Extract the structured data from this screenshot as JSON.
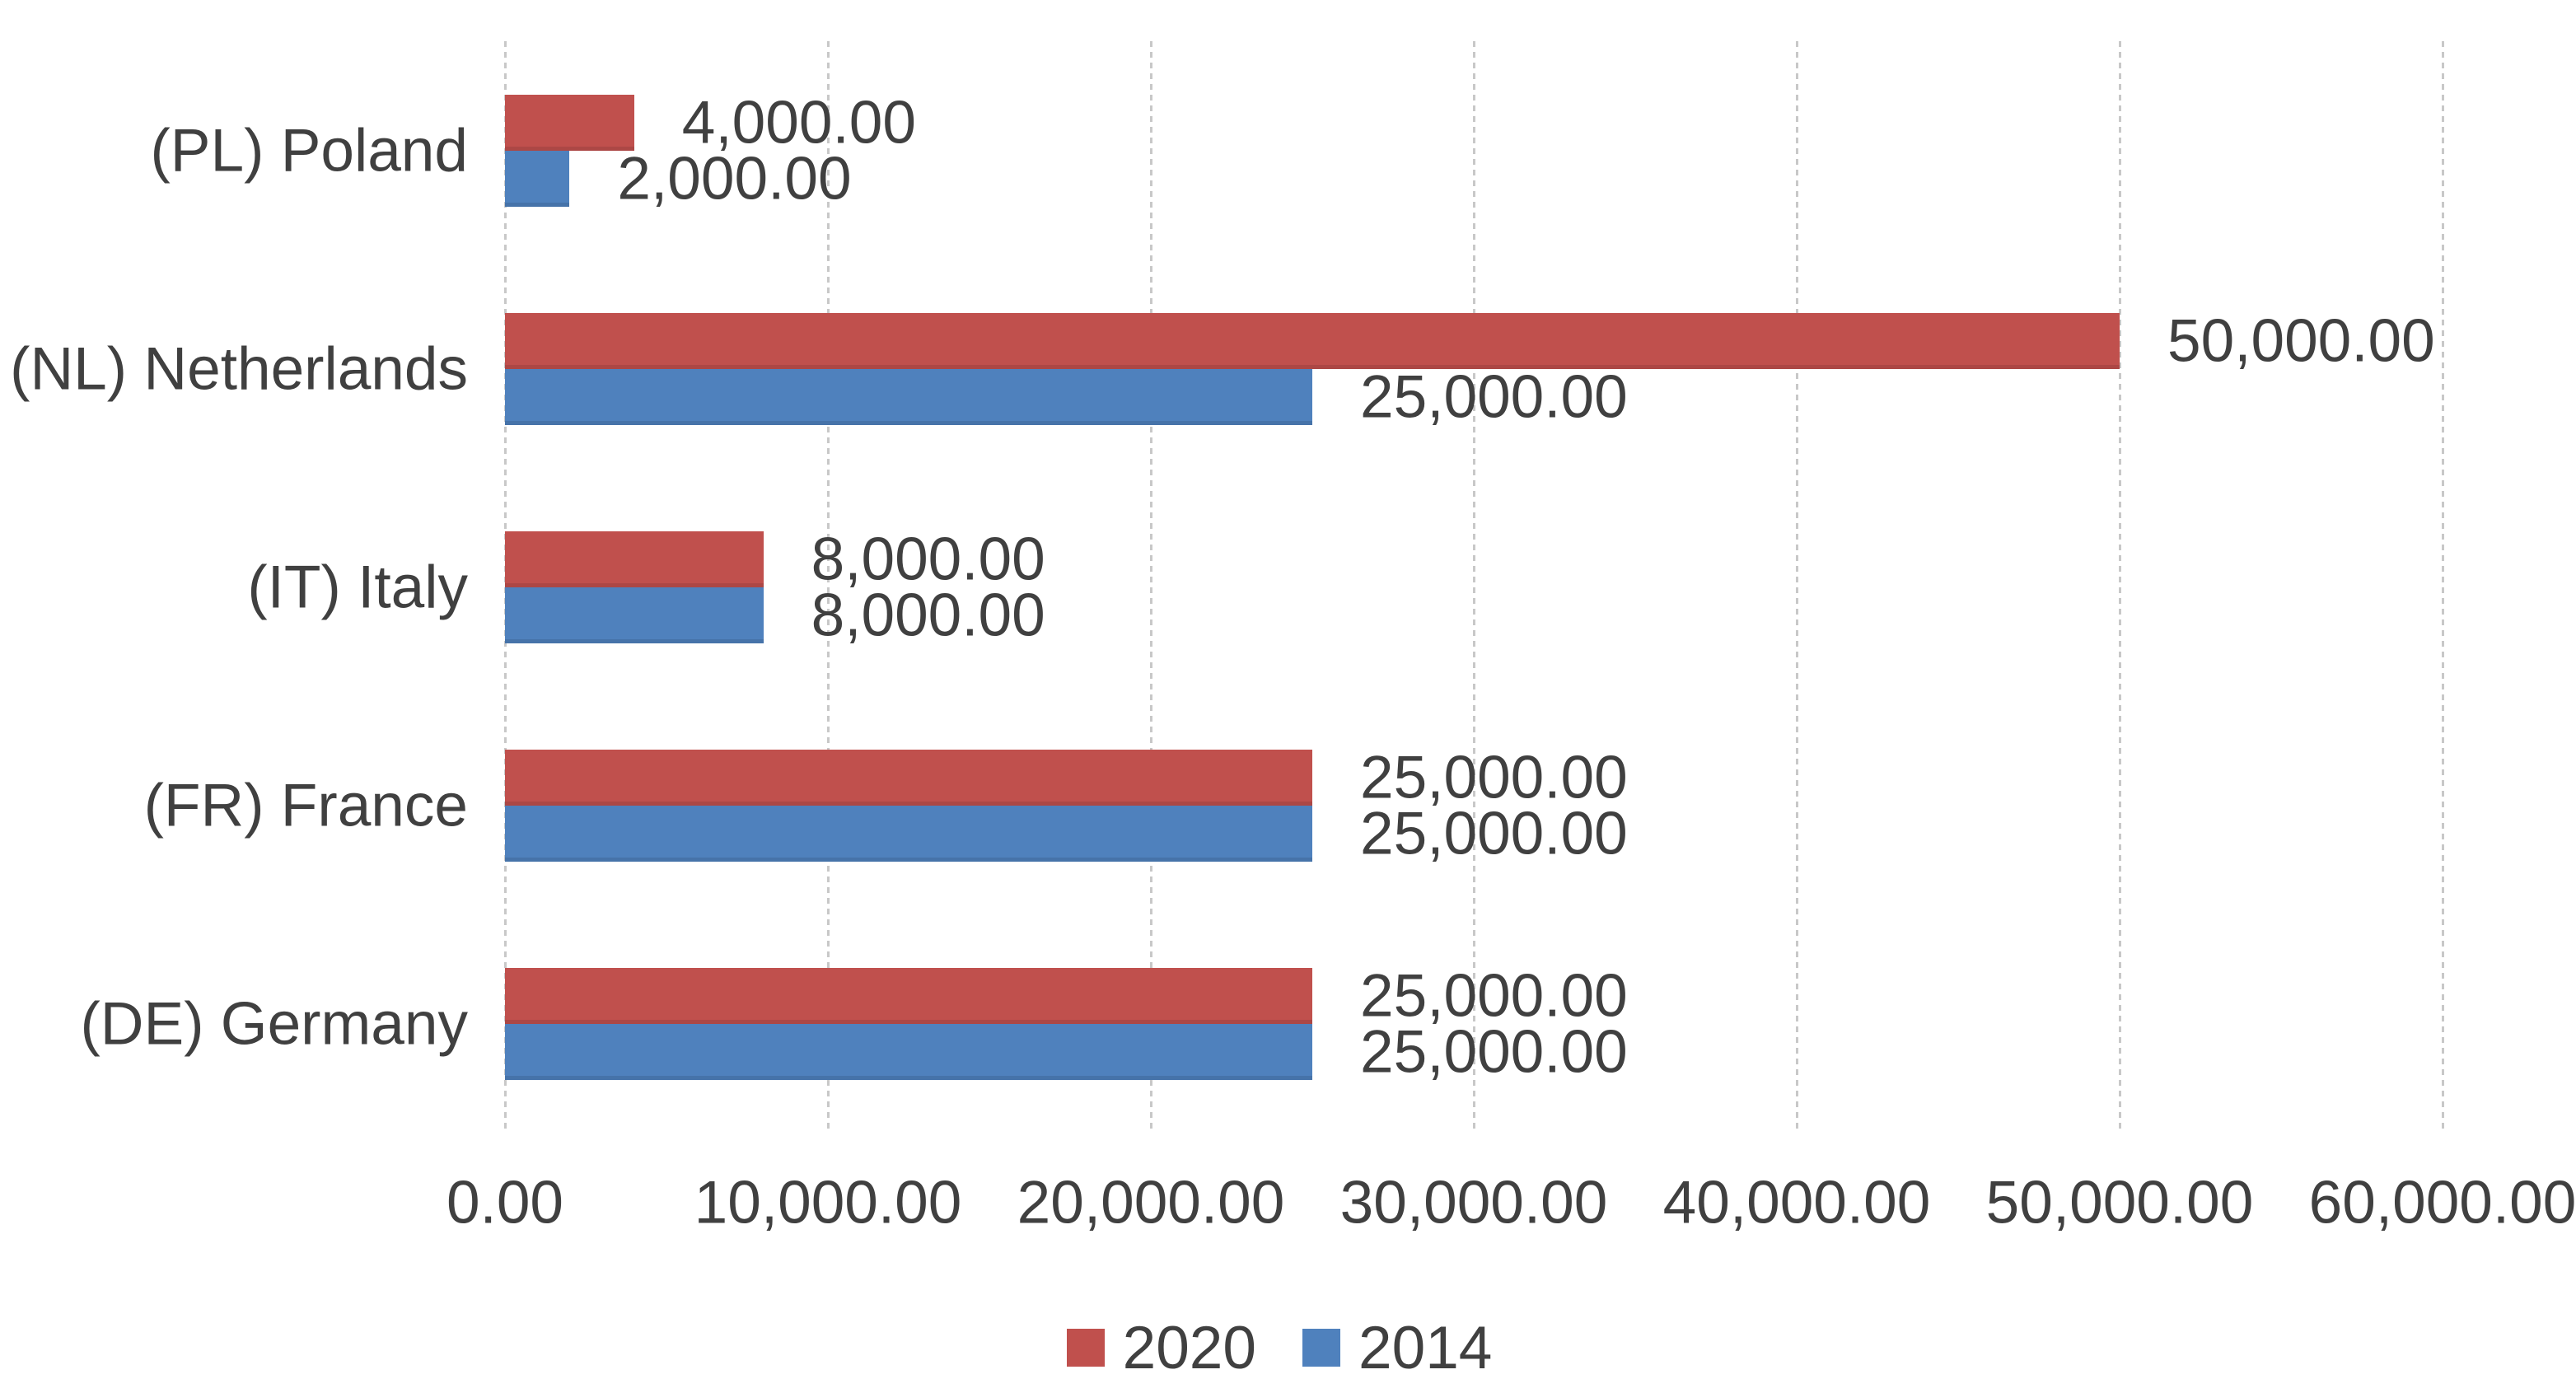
{
  "chart_data": {
    "type": "bar",
    "orientation": "horizontal",
    "title": "",
    "categories": [
      "(PL) Poland",
      "(NL) Netherlands",
      "(IT) Italy",
      "(FR) France",
      "(DE) Germany"
    ],
    "series": [
      {
        "name": "2020",
        "color": "#c0504d",
        "values": [
          4000,
          50000,
          8000,
          25000,
          25000
        ],
        "labels": [
          "4,000.00",
          "50,000.00",
          "8,000.00",
          "25,000.00",
          "25,000.00"
        ]
      },
      {
        "name": "2014",
        "color": "#4f81bd",
        "values": [
          2000,
          25000,
          8000,
          25000,
          25000
        ],
        "labels": [
          "2,000.00",
          "25,000.00",
          "8,000.00",
          "25,000.00",
          "25,000.00"
        ]
      }
    ],
    "x_axis": {
      "min": 0,
      "max": 60000,
      "tick_interval": 10000,
      "tick_labels": [
        "0.00",
        "10,000.00",
        "20,000.00",
        "30,000.00",
        "40,000.00",
        "50,000.00",
        "60,000.00"
      ]
    },
    "legend": {
      "position": "bottom",
      "entries": [
        "2020",
        "2014"
      ]
    },
    "grid": true,
    "colors": {
      "grid": "#c8c8c8",
      "text": "#404040",
      "background": "#ffffff"
    }
  }
}
